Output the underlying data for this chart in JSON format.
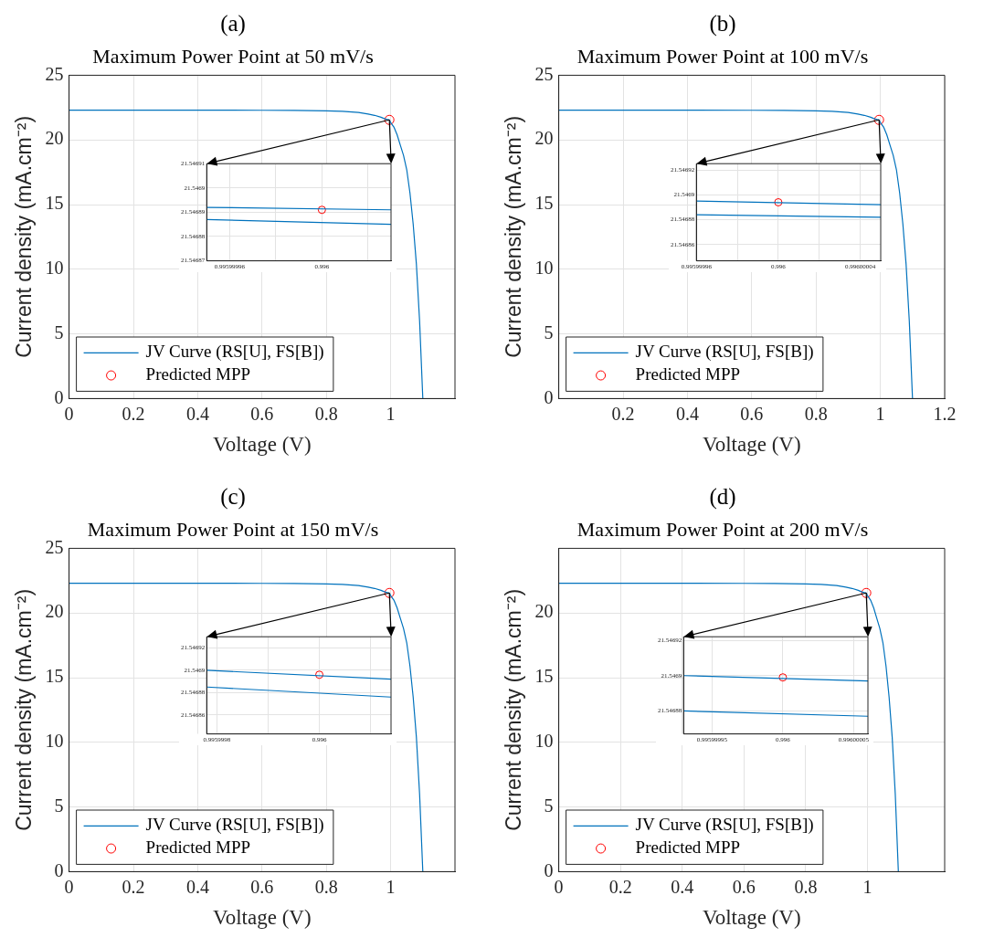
{
  "chart_data": [
    {
      "type": "line",
      "title": "(a)",
      "subtitle": "Maximum Power Point at 50 mV/s",
      "xlabel": "Voltage (V)",
      "ylabel": "Current density (mA.cm⁻²)",
      "xlim": [
        0,
        1.2
      ],
      "xticks": [
        0,
        0.2,
        0.4,
        0.6,
        0.8,
        1
      ],
      "ylim": [
        0,
        25
      ],
      "yticks": [
        0,
        5,
        10,
        15,
        20,
        25
      ],
      "grid": true,
      "legend": "bottom left",
      "series": [
        {
          "name": "JV Curve (RS[U], FS[B])",
          "color": "#0072bd",
          "x": [
            0,
            0.2,
            0.4,
            0.6,
            0.7,
            0.8,
            0.85,
            0.9,
            0.93,
            0.95,
            0.97,
            0.98,
            0.99,
            0.996,
            1.0,
            1.01,
            1.02,
            1.03,
            1.04,
            1.05,
            1.06,
            1.07,
            1.08,
            1.09,
            1.1
          ],
          "values": [
            22.3,
            22.3,
            22.3,
            22.29,
            22.28,
            22.25,
            22.21,
            22.12,
            22.0,
            21.9,
            21.75,
            21.65,
            21.58,
            21.55,
            21.35,
            21.0,
            20.4,
            19.6,
            18.8,
            17.7,
            15.9,
            13.5,
            10.4,
            6.0,
            0
          ]
        },
        {
          "type": "scatter",
          "name": "Predicted MPP",
          "color": "#ff0000",
          "marker": "circle",
          "x": [
            0.996
          ],
          "values": [
            21.55
          ]
        }
      ]
    },
    {
      "type": "line",
      "xlim": [
        0.99599995,
        0.99600003
      ],
      "xticks": [
        0.99599996,
        {
          "value": 0.99599998,
          "label": null
        },
        0.996,
        {
          "value": 0.99600002,
          "label": null
        }
      ],
      "ylim": [
        21.54687,
        21.54691
      ],
      "yticks": [
        21.54687,
        21.54688,
        21.54689,
        21.5469,
        21.54691
      ],
      "grid": true,
      "series": [
        {
          "color": "#0072bd",
          "x": [
            0.99599995,
            0.99600003
          ],
          "values": [
            21.546892,
            21.546891
          ]
        },
        {
          "color": "#0072bd",
          "x": [
            0.99599995,
            0.99600003
          ],
          "values": [
            21.546887,
            21.546885
          ]
        },
        {
          "type": "scatter",
          "color": "#ff0000",
          "marker": "circle",
          "x": [
            0.996
          ],
          "values": [
            21.546891
          ]
        }
      ]
    },
    {
      "type": "line",
      "title": "(b)",
      "subtitle": "Maximum Power Point at 100 mV/s",
      "xlabel": "Voltage (V)",
      "ylabel": "Current density (mA.cm⁻²)",
      "xlim": [
        0,
        1.2
      ],
      "xticks": [
        0.2,
        0.4,
        0.6,
        0.8,
        1,
        1.2
      ],
      "ylim": [
        0,
        25
      ],
      "yticks": [
        0,
        5,
        10,
        15,
        20,
        25
      ],
      "grid": true,
      "legend": "bottom left",
      "series": [
        {
          "name": "JV Curve (RS[U], FS[B])",
          "color": "#0072bd",
          "x": [
            0,
            0.2,
            0.4,
            0.6,
            0.7,
            0.8,
            0.85,
            0.9,
            0.93,
            0.95,
            0.97,
            0.98,
            0.99,
            0.996,
            1.0,
            1.01,
            1.02,
            1.03,
            1.04,
            1.05,
            1.06,
            1.07,
            1.08,
            1.09,
            1.1
          ],
          "values": [
            22.3,
            22.3,
            22.3,
            22.29,
            22.28,
            22.25,
            22.21,
            22.12,
            22.0,
            21.9,
            21.75,
            21.65,
            21.58,
            21.55,
            21.35,
            21.0,
            20.4,
            19.6,
            18.8,
            17.7,
            15.9,
            13.5,
            10.4,
            6.0,
            0
          ]
        },
        {
          "type": "scatter",
          "name": "Predicted MPP",
          "color": "#ff0000",
          "marker": "circle",
          "x": [
            0.996
          ],
          "values": [
            21.55
          ]
        }
      ]
    },
    {
      "type": "line",
      "xlim": [
        0.99599996,
        0.99600005
      ],
      "xticks": [
        0.99599996,
        {
          "value": 0.99599998,
          "label": null
        },
        0.996,
        {
          "value": 0.99600002,
          "label": null
        },
        0.99600004
      ],
      "ylim": [
        21.546847,
        21.546925
      ],
      "yticks": [
        21.54686,
        21.54688,
        21.5469,
        21.54692
      ],
      "grid": true,
      "series": [
        {
          "color": "#0072bd",
          "x": [
            0.99599996,
            0.99600005
          ],
          "values": [
            21.546895,
            21.546892
          ]
        },
        {
          "color": "#0072bd",
          "x": [
            0.99599996,
            0.99600005
          ],
          "values": [
            21.546884,
            21.546882
          ]
        },
        {
          "type": "scatter",
          "color": "#ff0000",
          "marker": "circle",
          "x": [
            0.996
          ],
          "values": [
            21.546894
          ]
        }
      ]
    },
    {
      "type": "line",
      "title": "(c)",
      "subtitle": "Maximum Power Point at 150 mV/s",
      "xlabel": "Voltage (V)",
      "ylabel": "Current density (mA.cm⁻²)",
      "xlim": [
        0,
        1.2
      ],
      "xticks": [
        0,
        0.2,
        0.4,
        0.6,
        0.8,
        1
      ],
      "ylim": [
        0,
        25
      ],
      "yticks": [
        0,
        5,
        10,
        15,
        20,
        25
      ],
      "grid": true,
      "legend": "bottom left",
      "series": [
        {
          "name": "JV Curve (RS[U], FS[B])",
          "color": "#0072bd",
          "x": [
            0,
            0.2,
            0.4,
            0.6,
            0.7,
            0.8,
            0.85,
            0.9,
            0.93,
            0.95,
            0.97,
            0.98,
            0.99,
            0.996,
            1.0,
            1.01,
            1.02,
            1.03,
            1.04,
            1.05,
            1.06,
            1.07,
            1.08,
            1.09,
            1.1
          ],
          "values": [
            22.3,
            22.3,
            22.3,
            22.29,
            22.28,
            22.25,
            22.21,
            22.12,
            22.0,
            21.9,
            21.75,
            21.65,
            21.58,
            21.55,
            21.35,
            21.0,
            20.4,
            19.6,
            18.8,
            17.7,
            15.9,
            13.5,
            10.4,
            6.0,
            0
          ]
        },
        {
          "type": "scatter",
          "name": "Predicted MPP",
          "color": "#ff0000",
          "marker": "circle",
          "x": [
            0.996
          ],
          "values": [
            21.55
          ]
        }
      ]
    },
    {
      "type": "line",
      "xlim": [
        0.99599978,
        0.99600014
      ],
      "xticks": [
        0.9959998,
        {
          "value": 0.9959999,
          "label": null
        },
        0.996,
        {
          "value": 0.9960001,
          "label": null
        }
      ],
      "ylim": [
        21.546843,
        21.54693
      ],
      "yticks": [
        21.54686,
        21.54688,
        21.5469,
        21.54692
      ],
      "grid": true,
      "series": [
        {
          "color": "#0072bd",
          "x": [
            0.99599978,
            0.99600014
          ],
          "values": [
            21.5469,
            21.546892
          ]
        },
        {
          "color": "#0072bd",
          "x": [
            0.99599978,
            0.99600014
          ],
          "values": [
            21.546885,
            21.546876
          ]
        },
        {
          "type": "scatter",
          "color": "#ff0000",
          "marker": "circle",
          "x": [
            0.996
          ],
          "values": [
            21.546896
          ]
        }
      ]
    },
    {
      "type": "line",
      "title": "(d)",
      "subtitle": "Maximum Power Point at 200 mV/s",
      "xlabel": "Voltage (V)",
      "ylabel": "Current density (mA.cm⁻²)",
      "xlim": [
        0,
        1.25
      ],
      "xticks": [
        0,
        0.2,
        0.4,
        0.6,
        0.8,
        1
      ],
      "ylim": [
        0,
        25
      ],
      "yticks": [
        0,
        5,
        10,
        15,
        20
      ],
      "grid": true,
      "legend": "bottom left",
      "series": [
        {
          "name": "JV Curve (RS[U], FS[B])",
          "color": "#0072bd",
          "x": [
            0,
            0.2,
            0.4,
            0.6,
            0.7,
            0.8,
            0.85,
            0.9,
            0.93,
            0.95,
            0.97,
            0.98,
            0.99,
            0.996,
            1.0,
            1.01,
            1.02,
            1.03,
            1.04,
            1.05,
            1.06,
            1.07,
            1.08,
            1.09,
            1.1
          ],
          "values": [
            22.3,
            22.3,
            22.3,
            22.29,
            22.28,
            22.25,
            22.21,
            22.12,
            22.0,
            21.9,
            21.75,
            21.65,
            21.58,
            21.55,
            21.35,
            21.0,
            20.4,
            19.6,
            18.8,
            17.7,
            15.9,
            13.5,
            10.4,
            6.0,
            0
          ]
        },
        {
          "type": "scatter",
          "name": "Predicted MPP",
          "color": "#ff0000",
          "marker": "circle",
          "x": [
            0.996
          ],
          "values": [
            21.55
          ]
        }
      ]
    },
    {
      "type": "line",
      "xlim": [
        0.99599993,
        0.99600006
      ],
      "xticks": [
        0.99599995,
        0.996,
        0.99600005
      ],
      "ylim": [
        21.546867,
        21.546922
      ],
      "yticks": [
        21.54688,
        21.5469,
        21.54692
      ],
      "grid": true,
      "series": [
        {
          "color": "#0072bd",
          "x": [
            0.99599993,
            0.99600006
          ],
          "values": [
            21.5469,
            21.546897
          ]
        },
        {
          "color": "#0072bd",
          "x": [
            0.99599993,
            0.99600006
          ],
          "values": [
            21.54688,
            21.546877
          ]
        },
        {
          "type": "scatter",
          "color": "#ff0000",
          "marker": "circle",
          "x": [
            0.996
          ],
          "values": [
            21.546899
          ]
        }
      ]
    }
  ]
}
